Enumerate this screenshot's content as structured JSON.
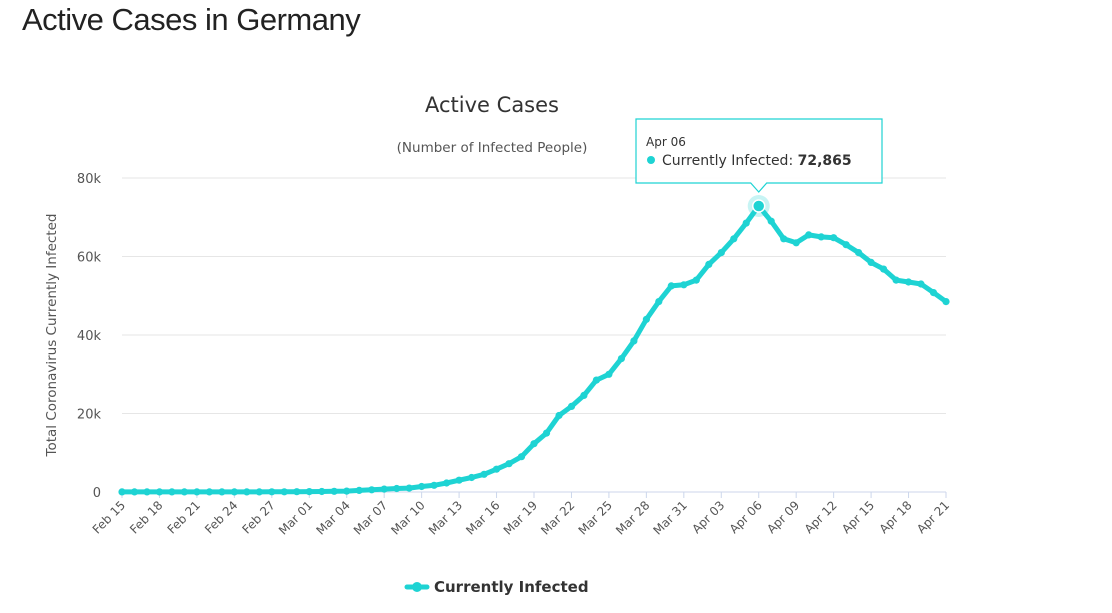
{
  "page": {
    "heading": "Active Cases in Germany"
  },
  "colors": {
    "series": "#1ed3d3",
    "grid": "#e6e6e6",
    "axis": "#ccd6eb",
    "tooltip_border": "#1ed3d3"
  },
  "chart_data": {
    "type": "line",
    "title": "Active Cases",
    "subtitle": "(Number of Infected People)",
    "ylabel": "Total Coronavirus Currently Infected",
    "ylim": [
      0,
      80000
    ],
    "yticks": [
      0,
      20000,
      40000,
      60000,
      80000
    ],
    "ytick_labels": [
      "0",
      "20k",
      "40k",
      "60k",
      "80k"
    ],
    "x_tick_labels": [
      "Feb 15",
      "Feb 18",
      "Feb 21",
      "Feb 24",
      "Feb 27",
      "Mar 01",
      "Mar 04",
      "Mar 07",
      "Mar 10",
      "Mar 13",
      "Mar 16",
      "Mar 19",
      "Mar 22",
      "Mar 25",
      "Mar 28",
      "Mar 31",
      "Apr 03",
      "Apr 06",
      "Apr 09",
      "Apr 12",
      "Apr 15",
      "Apr 18",
      "Apr 21"
    ],
    "grid": true,
    "legend_position": "bottom-center",
    "x": [
      "Feb 15",
      "Feb 16",
      "Feb 17",
      "Feb 18",
      "Feb 19",
      "Feb 20",
      "Feb 21",
      "Feb 22",
      "Feb 23",
      "Feb 24",
      "Feb 25",
      "Feb 26",
      "Feb 27",
      "Feb 28",
      "Feb 29",
      "Mar 01",
      "Mar 02",
      "Mar 03",
      "Mar 04",
      "Mar 05",
      "Mar 06",
      "Mar 07",
      "Mar 08",
      "Mar 09",
      "Mar 10",
      "Mar 11",
      "Mar 12",
      "Mar 13",
      "Mar 14",
      "Mar 15",
      "Mar 16",
      "Mar 17",
      "Mar 18",
      "Mar 19",
      "Mar 20",
      "Mar 21",
      "Mar 22",
      "Mar 23",
      "Mar 24",
      "Mar 25",
      "Mar 26",
      "Mar 27",
      "Mar 28",
      "Mar 29",
      "Mar 30",
      "Mar 31",
      "Apr 01",
      "Apr 02",
      "Apr 03",
      "Apr 04",
      "Apr 05",
      "Apr 06",
      "Apr 07",
      "Apr 08",
      "Apr 09",
      "Apr 10",
      "Apr 11",
      "Apr 12",
      "Apr 13",
      "Apr 14",
      "Apr 15",
      "Apr 16",
      "Apr 17",
      "Apr 18",
      "Apr 19",
      "Apr 20",
      "Apr 21"
    ],
    "series": [
      {
        "name": "Currently Infected",
        "values": [
          14,
          14,
          14,
          14,
          14,
          14,
          14,
          14,
          14,
          14,
          14,
          14,
          40,
          60,
          70,
          110,
          140,
          180,
          240,
          400,
          560,
          740,
          880,
          1000,
          1400,
          1700,
          2300,
          3000,
          3700,
          4500,
          5800,
          7200,
          9000,
          12300,
          15000,
          19500,
          21800,
          24600,
          28500,
          30000,
          34000,
          38500,
          44000,
          48500,
          52500,
          52800,
          54000,
          58000,
          61000,
          64500,
          68500,
          72865,
          69000,
          64500,
          63500,
          65500,
          65000,
          64800,
          63000,
          61000,
          58500,
          56800,
          54000,
          53500,
          53000,
          50800,
          48500
        ]
      }
    ],
    "tooltip": {
      "date": "Apr 06",
      "series": "Currently Infected",
      "value": "72,865"
    }
  }
}
